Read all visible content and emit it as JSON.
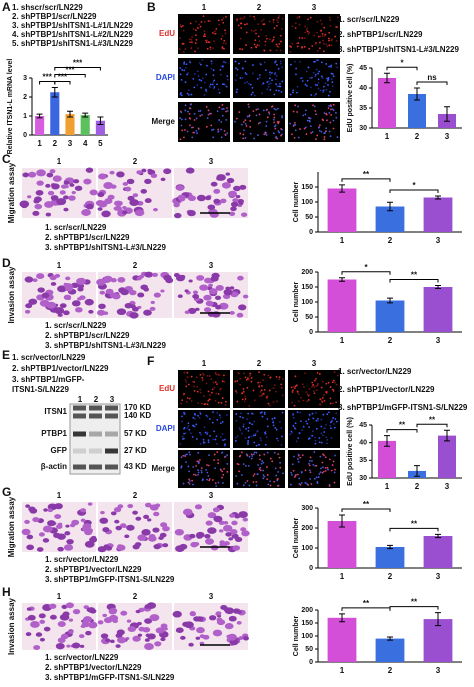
{
  "panels": {
    "A": {
      "label": "A",
      "legend": [
        "1. shscr/scr/LN229",
        "2. shPTBP1/scr/LN229",
        "3. shPTBP1/shITSN1-L#1/LN229",
        "4. shPTBP1/shITSN1-L#2/LN229",
        "5. shPTBP1/shITSN1-L#3/LN229"
      ]
    },
    "B": {
      "label": "B",
      "columns": [
        "1",
        "2",
        "3"
      ],
      "rows": [
        "EdU",
        "DAPI",
        "Merge"
      ],
      "legend": [
        "1. scr/scr/LN229",
        "2. shPTBP1/scr/LN229",
        "3. shPTBP1/shITSN1-L#3/LN229"
      ]
    },
    "C": {
      "label": "C",
      "columns": [
        "1",
        "2",
        "3"
      ],
      "side": "Migration assay",
      "legend": [
        "1. scr/scr/LN229",
        "2. shPTBP1/scr/LN229",
        "3. shPTBP1/shITSN1-L#3/LN229"
      ]
    },
    "D": {
      "label": "D",
      "columns": [
        "1",
        "2",
        "3"
      ],
      "side": "Invasion assay",
      "legend": [
        "1. scr/scr/LN229",
        "2. shPTBP1/scr/LN229",
        "3. shPTBP1/shITSN1-L#3/LN229"
      ]
    },
    "E": {
      "label": "E",
      "legend": [
        "1. scr/vector/LN229",
        "2. shPTBP1/vector/LN229",
        "3. shPTBP1/mGFP-",
        "ITSN1-S/LN229"
      ],
      "lanes": [
        "1",
        "2",
        "3"
      ],
      "bands": [
        {
          "name": "ITSN1",
          "sizes": [
            "170 KD",
            "140 KD"
          ]
        },
        {
          "name": "PTBP1",
          "sizes": [
            "57 KD"
          ]
        },
        {
          "name": "GFP",
          "sizes": [
            "27 KD"
          ]
        },
        {
          "name": "β-actin",
          "sizes": [
            "43 KD"
          ]
        }
      ]
    },
    "F": {
      "label": "F",
      "columns": [
        "1",
        "2",
        "3"
      ],
      "rows": [
        "EdU",
        "DAPI",
        "Merge"
      ],
      "legend": [
        "1. scr/vector/LN229",
        "2. shPTBP1/vector/LN229",
        "3. shPTBP1/mGFP-ITSN1-S/LN229"
      ]
    },
    "G": {
      "label": "G",
      "columns": [
        "1",
        "2",
        "3"
      ],
      "side": "Migration assay",
      "legend": [
        "1. scr/vector/LN229",
        "2. shPTBP1/vector/LN229",
        "3. shPTBP1/mGFP-ITSN1-S/LN229"
      ]
    },
    "H": {
      "label": "H",
      "columns": [
        "1",
        "2",
        "3"
      ],
      "side": "Invasion assay",
      "legend": [
        "1. scr/vector/LN229",
        "2. shPTBP1/vector/LN229",
        "3. shPTBP1/mGFP-ITSN1-S/LN229"
      ]
    }
  },
  "chart_data": [
    {
      "type": "bar",
      "ylabel": "Relative ITSN1-L mRNA level",
      "categories": [
        "1",
        "2",
        "3",
        "4",
        "5"
      ],
      "values": [
        1.0,
        2.25,
        1.1,
        1.05,
        0.75
      ],
      "errors": [
        0.1,
        0.25,
        0.15,
        0.1,
        0.2
      ],
      "colors": [
        "#d65ee0",
        "#3a66e0",
        "#f0a030",
        "#5cc05c",
        "#a05ee0"
      ],
      "ylim": [
        0,
        3
      ],
      "yticks": [
        0,
        1,
        2,
        3
      ],
      "annotations": [
        "***",
        "***",
        "***",
        "***"
      ]
    },
    {
      "type": "bar",
      "ylabel": "EdU positive cell (%)",
      "categories": [
        "1",
        "2",
        "3"
      ],
      "values": [
        42.5,
        38.5,
        33.5
      ],
      "errors": [
        1.2,
        1.5,
        1.8
      ],
      "colors": [
        "#d44fd8",
        "#3a6fe0",
        "#9a4fd0"
      ],
      "ylim": [
        30,
        45
      ],
      "yticks": [
        30,
        35,
        40,
        45
      ],
      "annotations": [
        "*",
        "ns"
      ]
    },
    {
      "type": "bar",
      "ylabel": "Cell number",
      "categories": [
        "1",
        "2",
        "3"
      ],
      "values": [
        145,
        85,
        115
      ],
      "errors": [
        12,
        14,
        5
      ],
      "colors": [
        "#d44fd8",
        "#3a6fe0",
        "#9a4fd0"
      ],
      "ylim": [
        0,
        200
      ],
      "yticks": [
        0,
        50,
        100,
        150
      ],
      "annotations": [
        "**",
        "*"
      ]
    },
    {
      "type": "bar",
      "ylabel": "Cell number",
      "categories": [
        "1",
        "2",
        "3"
      ],
      "values": [
        175,
        105,
        150
      ],
      "errors": [
        6,
        8,
        5
      ],
      "colors": [
        "#d44fd8",
        "#3a6fe0",
        "#9a4fd0"
      ],
      "ylim": [
        0,
        200
      ],
      "yticks": [
        0,
        50,
        100,
        150,
        200
      ],
      "annotations": [
        "*",
        "**"
      ]
    },
    {
      "type": "bar",
      "ylabel": "EdU positive cell (%)",
      "categories": [
        "1",
        "2",
        "3"
      ],
      "values": [
        40.5,
        32,
        42
      ],
      "errors": [
        1.5,
        1.5,
        1.5
      ],
      "colors": [
        "#d44fd8",
        "#3a6fe0",
        "#9a4fd0"
      ],
      "ylim": [
        30,
        45
      ],
      "yticks": [
        30,
        35,
        40,
        45
      ],
      "annotations": [
        "**",
        "**"
      ]
    },
    {
      "type": "bar",
      "ylabel": "Cell number",
      "categories": [
        "1",
        "2",
        "3"
      ],
      "values": [
        235,
        105,
        160
      ],
      "errors": [
        30,
        8,
        8
      ],
      "colors": [
        "#d44fd8",
        "#3a6fe0",
        "#9a4fd0"
      ],
      "ylim": [
        0,
        300
      ],
      "yticks": [
        0,
        100,
        200,
        300
      ],
      "annotations": [
        "**",
        "**"
      ]
    },
    {
      "type": "bar",
      "ylabel": "Cell number",
      "categories": [
        "1",
        "2",
        "3"
      ],
      "values": [
        170,
        90,
        165
      ],
      "errors": [
        15,
        6,
        25
      ],
      "colors": [
        "#d44fd8",
        "#3a6fe0",
        "#9a4fd0"
      ],
      "ylim": [
        0,
        200
      ],
      "yticks": [
        0,
        50,
        100,
        150,
        200
      ],
      "annotations": [
        "**",
        "**"
      ]
    }
  ]
}
